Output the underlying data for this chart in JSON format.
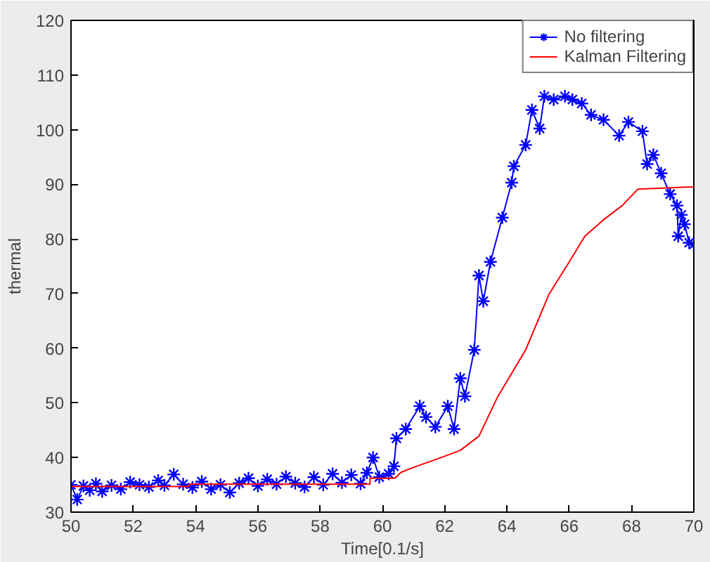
{
  "chart_data": {
    "type": "line",
    "xlabel": "Time[0.1/s]",
    "ylabel": "thermal",
    "xlim": [
      50,
      70
    ],
    "ylim": [
      30,
      120
    ],
    "xticks": [
      50,
      52,
      54,
      56,
      58,
      60,
      62,
      64,
      66,
      68,
      70
    ],
    "yticks": [
      30,
      40,
      50,
      60,
      70,
      80,
      90,
      100,
      110,
      120
    ],
    "grid": false,
    "legend": "top right",
    "line_style": "solid",
    "series": [
      {
        "name": "No filtering",
        "color": "#0000ff",
        "marker": "cross",
        "x": [
          50.0,
          50.2,
          50.4,
          50.6,
          50.8,
          51.0,
          51.3,
          51.6,
          51.9,
          52.2,
          52.5,
          52.8,
          53.0,
          53.3,
          53.6,
          53.9,
          54.2,
          54.5,
          54.8,
          55.1,
          55.4,
          55.7,
          56.0,
          56.3,
          56.6,
          56.9,
          57.2,
          57.5,
          57.8,
          58.1,
          58.4,
          58.7,
          59.0,
          59.3,
          59.5,
          59.7,
          59.9,
          60.2,
          60.37,
          60.45,
          60.75,
          61.2,
          61.4,
          61.7,
          62.1,
          62.3,
          62.5,
          62.65,
          62.95,
          63.1,
          63.24,
          63.47,
          63.85,
          64.15,
          64.22,
          64.6,
          64.8,
          65.05,
          65.2,
          65.5,
          65.86,
          66.1,
          66.4,
          66.7,
          67.1,
          67.6,
          67.9,
          68.35,
          68.5,
          68.7,
          68.95,
          69.24,
          69.46,
          69.5,
          69.6,
          69.7,
          69.85,
          70.0
        ],
        "values": [
          35.0,
          32.3,
          34.8,
          34.0,
          35.2,
          33.8,
          34.9,
          34.2,
          35.5,
          35.0,
          34.6,
          35.8,
          34.9,
          36.9,
          35.1,
          34.5,
          35.6,
          34.2,
          35.0,
          33.6,
          35.3,
          36.2,
          34.8,
          36.0,
          35.1,
          36.5,
          35.3,
          34.6,
          36.4,
          35.0,
          37.0,
          35.4,
          36.8,
          35.2,
          37.2,
          40.0,
          36.4,
          37.0,
          38.4,
          43.5,
          45.2,
          49.4,
          47.4,
          45.6,
          49.4,
          45.2,
          54.5,
          51.2,
          59.7,
          73.3,
          68.6,
          75.8,
          83.9,
          90.3,
          93.3,
          97.2,
          103.6,
          100.2,
          106.1,
          105.5,
          106.1,
          105.5,
          104.8,
          102.7,
          101.8,
          98.9,
          101.4,
          99.7,
          93.7,
          95.4,
          92.0,
          88.2,
          86.1,
          80.5,
          84.4,
          82.7,
          79.3,
          79.0
        ]
      },
      {
        "name": "Kalman Filtering",
        "color": "#ff0000",
        "marker": "none",
        "x": [
          50.0,
          53.8,
          53.8,
          59.6,
          59.6,
          60.4,
          60.6,
          61.1,
          61.7,
          62.5,
          63.1,
          63.7,
          64.6,
          65.35,
          66.0,
          66.5,
          67.1,
          67.7,
          68.2,
          69.8,
          70.0
        ],
        "values": [
          34.7,
          34.7,
          35.1,
          35.1,
          36.2,
          36.2,
          37.3,
          38.4,
          39.6,
          41.3,
          43.9,
          51.1,
          59.7,
          69.9,
          75.8,
          80.5,
          83.5,
          86.1,
          89.1,
          89.5,
          89.5
        ]
      }
    ]
  }
}
